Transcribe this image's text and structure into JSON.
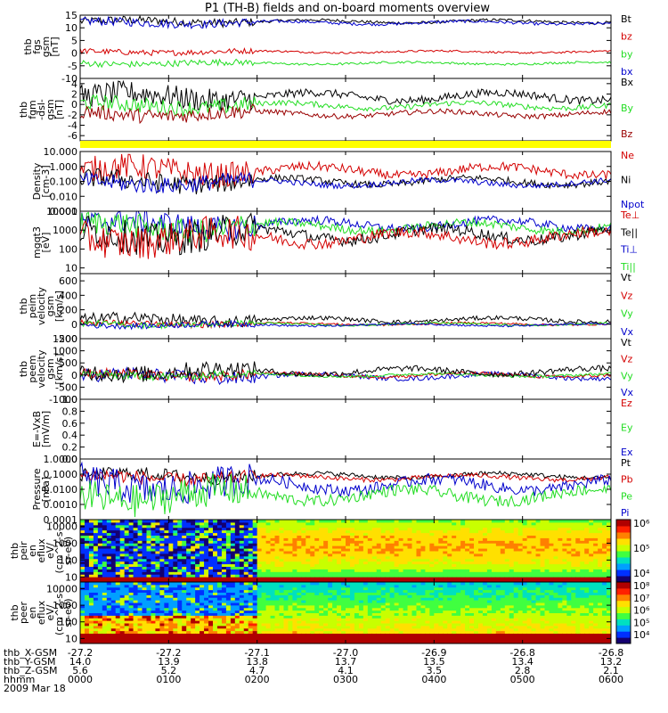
{
  "page": {
    "title": "P1 (TH-B) fields and on-board moments overview",
    "date_label": "2009 Mar 18"
  },
  "colors": {
    "black": "#000000",
    "red": "#d40000",
    "green": "#22dd22",
    "blue": "#0000cc",
    "darkred": "#990000",
    "yellow": "#ffff00"
  },
  "time_axis": {
    "hours": [
      "0000",
      "0100",
      "0200",
      "0300",
      "0400",
      "0500",
      "0600"
    ],
    "ephemeris": [
      {
        "label": "thb_X-GSM",
        "values": [
          "-27.2",
          "-27.2",
          "-27.1",
          "-27.0",
          "-26.9",
          "-26.8",
          "-26.8"
        ]
      },
      {
        "label": "thb_Y-GSM",
        "values": [
          "14.0",
          "13.9",
          "13.8",
          "13.7",
          "13.5",
          "13.4",
          "13.2"
        ]
      },
      {
        "label": "thb_Z-GSM",
        "values": [
          "5.6",
          "5.2",
          "4.7",
          "4.1",
          "3.5",
          "2.8",
          "2.1"
        ]
      },
      {
        "label": "hhmm",
        "values": [
          "0000",
          "0100",
          "0200",
          "0300",
          "0400",
          "0500",
          "0600"
        ]
      }
    ]
  },
  "chart_data": [
    {
      "type": "line",
      "ylabel": [
        "thb",
        "fgs",
        "gsm",
        "[nT]"
      ],
      "ylim": [
        -10,
        15
      ],
      "scale": "linear",
      "ticks": [
        "15",
        "10",
        "5",
        "0",
        "-5",
        "-10"
      ],
      "legend": [
        {
          "name": "Bt",
          "color": "#000000"
        },
        {
          "name": "bz",
          "color": "#d40000"
        },
        {
          "name": "by",
          "color": "#22dd22"
        },
        {
          "name": "bx",
          "color": "#0000cc"
        }
      ],
      "series": [
        {
          "name": "Bt",
          "color": "#000000",
          "base": 12.5,
          "amp": 1.2
        },
        {
          "name": "bx",
          "color": "#0000cc",
          "base": 12.0,
          "amp": 1.2
        },
        {
          "name": "bz",
          "color": "#d40000",
          "base": 0.5,
          "amp": 0.8
        },
        {
          "name": "by",
          "color": "#22dd22",
          "base": -4.0,
          "amp": 0.9
        }
      ]
    },
    {
      "type": "line",
      "ylabel": [
        "thb",
        "fgm",
        "-dsl-",
        "gsm",
        "[nT]"
      ],
      "ylim": [
        -7,
        5
      ],
      "scale": "linear",
      "ticks": [
        "4",
        "2",
        "0",
        "-2",
        "-4",
        "-6"
      ],
      "legend": [
        {
          "name": "Bx",
          "color": "#000000"
        },
        {
          "name": "By",
          "color": "#22dd22"
        },
        {
          "name": "Bz",
          "color": "#990000"
        }
      ],
      "series": [
        {
          "name": "Bx",
          "color": "#000000",
          "base": 1.5,
          "amp": 1.6
        },
        {
          "name": "By",
          "color": "#22dd22",
          "base": -0.2,
          "amp": 1.1
        },
        {
          "name": "Bz",
          "color": "#990000",
          "base": -1.8,
          "amp": 1.0
        }
      ]
    },
    {
      "type": "line",
      "ylabel": [
        "Density",
        "[cm-3]"
      ],
      "ylim": [
        0.001,
        10
      ],
      "scale": "log",
      "ticks": [
        "10.000",
        "1.000",
        "0.100",
        "0.010",
        "0.001"
      ],
      "legend": [
        {
          "name": "Ne",
          "color": "#d40000"
        },
        {
          "name": "Ni",
          "color": "#000000"
        },
        {
          "name": "Npot",
          "color": "#0000cc"
        }
      ],
      "series": [
        {
          "name": "Ne",
          "color": "#d40000",
          "base": 0.5,
          "amp": 0.4
        },
        {
          "name": "Ni",
          "color": "#000000",
          "base": 0.1,
          "amp": 0.3
        },
        {
          "name": "Npot",
          "color": "#0000cc",
          "base": 0.08,
          "amp": 0.25
        }
      ]
    },
    {
      "type": "line",
      "ylabel": [
        "mgqt3",
        "[eV]"
      ],
      "ylim": [
        5,
        10000
      ],
      "scale": "log",
      "ticks": [
        "10000",
        "1000",
        "100",
        "10"
      ],
      "legend": [
        {
          "name": "Te⊥",
          "color": "#d40000"
        },
        {
          "name": "Te||",
          "color": "#000000"
        },
        {
          "name": "Ti⊥",
          "color": "#0000cc"
        },
        {
          "name": "Ti||",
          "color": "#22dd22"
        }
      ],
      "series": [
        {
          "name": "Ti⊥",
          "color": "#0000cc",
          "base": 2000,
          "amp": 0.3
        },
        {
          "name": "Ti||",
          "color": "#22dd22",
          "base": 1500,
          "amp": 0.3
        },
        {
          "name": "Te||",
          "color": "#000000",
          "base": 600,
          "amp": 0.4
        },
        {
          "name": "Te⊥",
          "color": "#d40000",
          "base": 400,
          "amp": 0.4
        }
      ]
    },
    {
      "type": "line",
      "ylabel": [
        "thb",
        "peim",
        "velocity",
        "gsm",
        "[km/s]"
      ],
      "ylim": [
        -200,
        700
      ],
      "scale": "linear",
      "ticks": [
        "600",
        "400",
        "200",
        "0",
        "-200"
      ],
      "legend": [
        {
          "name": "Vt",
          "color": "#000000"
        },
        {
          "name": "Vz",
          "color": "#d40000"
        },
        {
          "name": "Vy",
          "color": "#22dd22"
        },
        {
          "name": "Vx",
          "color": "#0000cc"
        }
      ],
      "series": [
        {
          "name": "Vt",
          "color": "#000000",
          "base": 60,
          "amp": 60
        },
        {
          "name": "Vz",
          "color": "#d40000",
          "base": 5,
          "amp": 30
        },
        {
          "name": "Vy",
          "color": "#22dd22",
          "base": 0,
          "amp": 30
        },
        {
          "name": "Vx",
          "color": "#0000cc",
          "base": -10,
          "amp": 30
        }
      ]
    },
    {
      "type": "line",
      "ylabel": [
        "thb",
        "peem",
        "velocity",
        "gsm",
        "[km/s]"
      ],
      "ylim": [
        -1000,
        1500
      ],
      "scale": "linear",
      "ticks": [
        "1500",
        "1000",
        "500",
        "0",
        "-500",
        "-1000"
      ],
      "legend": [
        {
          "name": "Vt",
          "color": "#000000"
        },
        {
          "name": "Vz",
          "color": "#d40000"
        },
        {
          "name": "Vy",
          "color": "#22dd22"
        },
        {
          "name": "Vx",
          "color": "#0000cc"
        }
      ],
      "series": [
        {
          "name": "Vx",
          "color": "#0000cc",
          "base": -50,
          "amp": 200
        },
        {
          "name": "Vz",
          "color": "#d40000",
          "base": 0,
          "amp": 150
        },
        {
          "name": "Vy",
          "color": "#22dd22",
          "base": 0,
          "amp": 120
        },
        {
          "name": "Vt",
          "color": "#000000",
          "base": 150,
          "amp": 250
        }
      ]
    },
    {
      "type": "line",
      "ylabel": [
        "E=-VxB",
        "[mV/m]"
      ],
      "ylim": [
        0,
        1
      ],
      "scale": "linear",
      "ticks": [
        "1.0",
        "0.8",
        "0.6",
        "0.4",
        "0.2",
        "0.0"
      ],
      "legend": [
        {
          "name": "Ez",
          "color": "#d40000"
        },
        {
          "name": "Ey",
          "color": "#22dd22"
        },
        {
          "name": "Ex",
          "color": "#0000cc"
        }
      ],
      "series": []
    },
    {
      "type": "line",
      "ylabel": [
        "Pressure",
        "[nPa]"
      ],
      "ylim": [
        0.0001,
        1
      ],
      "scale": "log",
      "ticks": [
        "1.0000",
        "0.1000",
        "0.0100",
        "0.0010",
        "0.0001"
      ],
      "legend": [
        {
          "name": "Pt",
          "color": "#000000"
        },
        {
          "name": "Pb",
          "color": "#d40000"
        },
        {
          "name": "Pe",
          "color": "#22dd22"
        },
        {
          "name": "Pi",
          "color": "#0000cc"
        }
      ],
      "series": [
        {
          "name": "Pt",
          "color": "#000000",
          "base": 0.08,
          "amp": 0.2
        },
        {
          "name": "Pb",
          "color": "#d40000",
          "base": 0.06,
          "amp": 0.2
        },
        {
          "name": "Pi",
          "color": "#0000cc",
          "base": 0.02,
          "amp": 0.5
        },
        {
          "name": "Pe",
          "color": "#22dd22",
          "base": 0.004,
          "amp": 0.5
        }
      ]
    },
    {
      "type": "heatmap",
      "ylabel": [
        "thb",
        "peir",
        "en",
        "eflux",
        "eV/",
        "(cm^2-s-",
        "sr-eV)"
      ],
      "ylim": [
        5,
        25000
      ],
      "scale": "log",
      "ticks": [
        "10000",
        "1000",
        "100",
        "10"
      ],
      "colorbar": {
        "ticks": [
          "10⁶",
          "10⁵",
          "10⁴"
        ]
      }
    },
    {
      "type": "heatmap",
      "ylabel": [
        "thb",
        "peer",
        "en",
        "eflux",
        "eV/",
        "(cm^2-s-",
        "sr-eV)"
      ],
      "ylim": [
        5,
        25000
      ],
      "scale": "log",
      "ticks": [
        "10000",
        "1000",
        "100",
        "10"
      ],
      "colorbar": {
        "ticks": [
          "10⁸",
          "10⁷",
          "10⁶",
          "10⁵",
          "10⁴"
        ]
      }
    }
  ]
}
